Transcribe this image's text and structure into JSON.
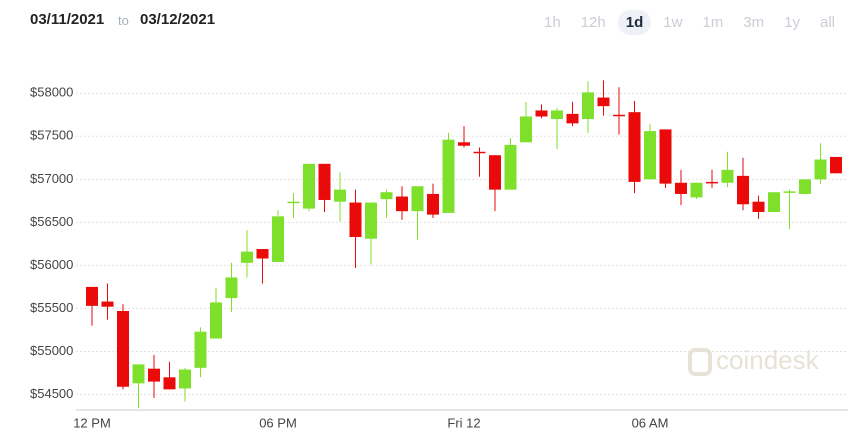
{
  "header": {
    "from": "03/11/2021",
    "to_word": "to",
    "to": "03/12/2021",
    "ranges": [
      "1h",
      "12h",
      "1d",
      "1w",
      "1m",
      "3m",
      "1y",
      "all"
    ],
    "selected": 2
  },
  "chart_data": {
    "type": "candlestick",
    "watermark": "coindesk",
    "categories": [
      "12 PM",
      null,
      null,
      null,
      null,
      null,
      null,
      null,
      null,
      null,
      null,
      null,
      "06 PM",
      null,
      null,
      null,
      null,
      null,
      null,
      null,
      null,
      null,
      null,
      null,
      "Fri 12",
      null,
      null,
      null,
      null,
      null,
      null,
      null,
      null,
      null,
      null,
      null,
      "06 AM",
      null,
      null,
      null,
      null,
      null,
      null,
      null,
      null,
      null,
      null,
      null,
      null
    ],
    "open": [
      55750,
      55580,
      55470,
      54630,
      54800,
      54700,
      54570,
      54810,
      55150,
      55620,
      56030,
      56190,
      56040,
      56730,
      56660,
      57180,
      56740,
      56730,
      56310,
      56770,
      56800,
      56630,
      56830,
      56610,
      57430,
      57320,
      57280,
      56880,
      57430,
      57800,
      57700,
      57760,
      57700,
      57950,
      57750,
      57780,
      57000,
      57580,
      56960,
      56790,
      56970,
      56960,
      57040,
      56740,
      56620,
      56850,
      56830,
      57000,
      57260
    ],
    "high": [
      55750,
      55790,
      55550,
      54850,
      54960,
      54880,
      54810,
      55280,
      55740,
      56030,
      56410,
      56190,
      56640,
      56840,
      57180,
      57180,
      57080,
      56880,
      56730,
      56880,
      56920,
      56920,
      56950,
      57540,
      57620,
      57370,
      57280,
      57480,
      57900,
      57870,
      57830,
      57900,
      58140,
      58150,
      58070,
      57910,
      57640,
      57580,
      57110,
      56960,
      57110,
      57320,
      57250,
      56810,
      56850,
      56880,
      57000,
      57420,
      57260
    ],
    "low": [
      55300,
      55370,
      54560,
      54340,
      54460,
      54560,
      54420,
      54700,
      55150,
      55460,
      55860,
      55790,
      56040,
      56550,
      56630,
      56620,
      56510,
      55970,
      56010,
      56550,
      56530,
      56300,
      56550,
      56610,
      57370,
      57030,
      56630,
      56880,
      57430,
      57710,
      57350,
      57620,
      57540,
      57740,
      57520,
      56840,
      57000,
      56900,
      56700,
      56770,
      56900,
      56910,
      56640,
      56540,
      56620,
      56420,
      56830,
      56950,
      57070
    ],
    "close": [
      55530,
      55520,
      54590,
      54850,
      54650,
      54560,
      54790,
      55230,
      55570,
      55860,
      56160,
      56080,
      56570,
      56740,
      57180,
      56760,
      56880,
      56330,
      56730,
      56850,
      56630,
      56920,
      56590,
      57460,
      57390,
      57310,
      56880,
      57400,
      57730,
      57730,
      57800,
      57650,
      58010,
      57850,
      57740,
      56970,
      57560,
      56950,
      56830,
      56960,
      56960,
      57110,
      56710,
      56620,
      56850,
      56860,
      57000,
      57230,
      57070
    ],
    "up_color": "#7ee02b",
    "down_color": "#ea0a0a",
    "ylim": [
      54320,
      58270
    ],
    "yticks": [
      {
        "value": 54500,
        "label": "$54500"
      },
      {
        "value": 55000,
        "label": "$55000"
      },
      {
        "value": 55500,
        "label": "$55500"
      },
      {
        "value": 56000,
        "label": "$56000"
      },
      {
        "value": 56500,
        "label": "$56500"
      },
      {
        "value": 57000,
        "label": "$57000"
      },
      {
        "value": 57500,
        "label": "$57500"
      },
      {
        "value": 58000,
        "label": "$58000"
      }
    ],
    "grid": true
  }
}
